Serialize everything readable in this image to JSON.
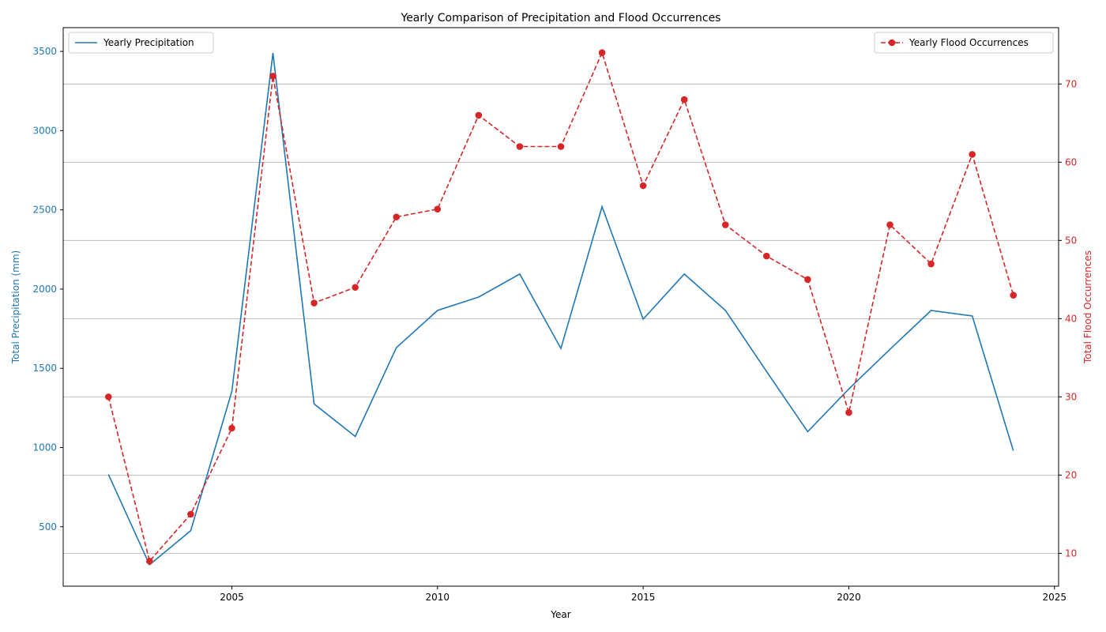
{
  "chart_data": {
    "type": "line",
    "title": "Yearly Comparison of Precipitation and Flood Occurrences",
    "xlabel": "Year",
    "ylabel_left": "Total Precipitation (mm)",
    "ylabel_right": "Total Flood Occurrences",
    "x": [
      2002,
      2003,
      2004,
      2005,
      2006,
      2007,
      2008,
      2009,
      2010,
      2011,
      2012,
      2013,
      2014,
      2015,
      2016,
      2017,
      2018,
      2019,
      2020,
      2021,
      2022,
      2023,
      2024
    ],
    "xlim": [
      2000.9,
      2025.1
    ],
    "xticks": [
      2005,
      2010,
      2015,
      2020,
      2025
    ],
    "ylim_left": [
      125,
      3650
    ],
    "yticks_left": [
      500,
      1000,
      1500,
      2000,
      2500,
      3000,
      3500
    ],
    "ylim_right": [
      5.8,
      77.2
    ],
    "yticks_right": [
      10,
      20,
      30,
      40,
      50,
      60,
      70
    ],
    "grid": "right-axis horizontal",
    "series": [
      {
        "name": "Yearly Precipitation",
        "axis": "left",
        "color": "#1f77b4",
        "style": "solid",
        "marker": "none",
        "values": [
          830,
          260,
          475,
          1355,
          3490,
          1275,
          1070,
          1630,
          1865,
          1950,
          2095,
          1625,
          2520,
          1810,
          2095,
          1865,
          1480,
          1100,
          1370,
          1620,
          1865,
          1830,
          980
        ]
      },
      {
        "name": "Yearly Flood Occurrences",
        "axis": "right",
        "color": "#d62728",
        "style": "dashed",
        "marker": "circle",
        "values": [
          30,
          9,
          15,
          26,
          71,
          42,
          44,
          53,
          54,
          66,
          62,
          62,
          74,
          57,
          68,
          52,
          48,
          45,
          28,
          52,
          47,
          61,
          43
        ]
      }
    ],
    "legend_left": "top-left",
    "legend_right": "top-right"
  }
}
